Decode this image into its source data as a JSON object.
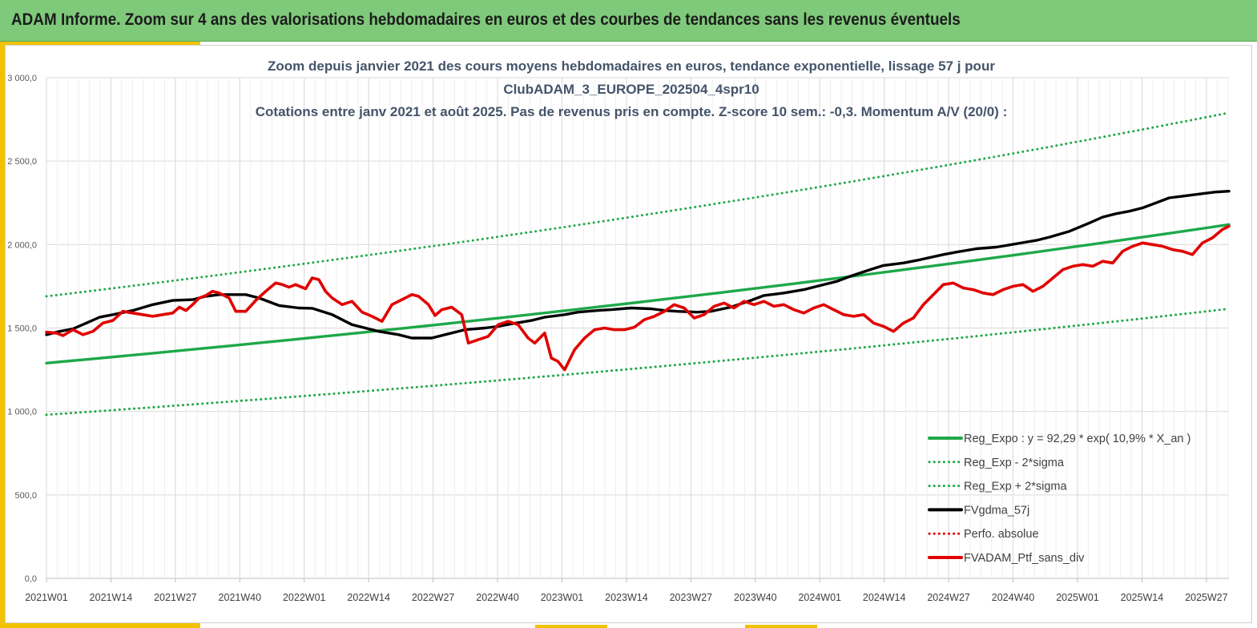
{
  "header": {
    "title": "ADAM Informe. Zoom sur 4 ans des valorisations hebdomadaires en euros et des courbes de tendances sans les revenus éventuels"
  },
  "colors": {
    "banner": "#7fc97a",
    "accent_yellow": "#f2c200",
    "reg_expo": "#1fa84a",
    "sigma": "#1fa84a",
    "gdma": "#000000",
    "perfo": "#e00000",
    "ptf": "#e00000"
  },
  "chart_data": {
    "type": "line",
    "title_lines": [
      "Zoom depuis janvier 2021 des cours moyens hebdomadaires  en euros, tendance exponentielle, lissage 57 j pour",
      "ClubADAM_3_EUROPE_202504_4spr10",
      "Cotations  entre janv 2021 et août 2025. Pas de revenus pris en compte.  Z-score 10 sem.: -0,3. Momentum A/V (20/0) :"
    ],
    "ylim": [
      0,
      3000
    ],
    "y_ticks": [
      "0,0",
      "500,0",
      "1 000,0",
      "1 500,0",
      "2 000,0",
      "2 500,0",
      "3 000,0"
    ],
    "x_ticks": [
      "2021W01",
      "2021W14",
      "2021W27",
      "2021W40",
      "2022W01",
      "2022W14",
      "2022W27",
      "2022W40",
      "2023W01",
      "2023W14",
      "2023W27",
      "2023W40",
      "2024W01",
      "2024W14",
      "2024W27",
      "2024W40",
      "2025W01",
      "2025W14",
      "2025W27"
    ],
    "x_range_weeks": [
      0,
      238
    ],
    "grid": "vertical-and-horizontal",
    "legend_position": "bottom-right",
    "series": [
      {
        "name": "Reg_Expo : y = 92,29 * exp( 10,9% *  X_an )",
        "style": "solid",
        "color": "#1fa84a",
        "start": 1290,
        "end": 2120
      },
      {
        "name": "Reg_Exp - 2*sigma",
        "style": "dotted",
        "color": "#1fa84a",
        "start": 980,
        "end": 1615
      },
      {
        "name": "Reg_Exp + 2*sigma",
        "style": "dotted",
        "color": "#1fa84a",
        "start": 1690,
        "end": 2790
      },
      {
        "name": "FVgdma_57j",
        "style": "solid",
        "color": "#000000",
        "points": [
          [
            0,
            1460
          ],
          [
            4,
            1480
          ],
          [
            8,
            1495
          ],
          [
            12,
            1530
          ],
          [
            16,
            1565
          ],
          [
            20,
            1580
          ],
          [
            26,
            1605
          ],
          [
            32,
            1640
          ],
          [
            38,
            1665
          ],
          [
            44,
            1670
          ],
          [
            48,
            1690
          ],
          [
            52,
            1700
          ],
          [
            60,
            1700
          ],
          [
            64,
            1680
          ],
          [
            70,
            1635
          ],
          [
            76,
            1620
          ],
          [
            80,
            1618
          ],
          [
            86,
            1580
          ],
          [
            92,
            1520
          ],
          [
            96,
            1500
          ],
          [
            100,
            1480
          ],
          [
            106,
            1460
          ],
          [
            110,
            1440
          ],
          [
            116,
            1440
          ],
          [
            120,
            1460
          ],
          [
            126,
            1490
          ],
          [
            132,
            1500
          ],
          [
            136,
            1510
          ],
          [
            140,
            1525
          ],
          [
            146,
            1545
          ],
          [
            150,
            1565
          ],
          [
            156,
            1580
          ],
          [
            160,
            1595
          ],
          [
            166,
            1605
          ],
          [
            170,
            1610
          ],
          [
            176,
            1620
          ],
          [
            182,
            1615
          ],
          [
            186,
            1605
          ],
          [
            190,
            1600
          ],
          [
            196,
            1595
          ],
          [
            200,
            1600
          ],
          [
            206,
            1625
          ],
          [
            212,
            1665
          ],
          [
            216,
            1695
          ],
          [
            222,
            1710
          ],
          [
            228,
            1730
          ],
          [
            232,
            1750
          ],
          [
            238,
            1780
          ],
          [
            242,
            1810
          ],
          [
            248,
            1850
          ],
          [
            252,
            1875
          ],
          [
            258,
            1890
          ],
          [
            262,
            1905
          ],
          [
            270,
            1940
          ],
          [
            274,
            1955
          ],
          [
            280,
            1975
          ],
          [
            286,
            1985
          ],
          [
            292,
            2005
          ],
          [
            298,
            2025
          ],
          [
            302,
            2045
          ],
          [
            308,
            2080
          ],
          [
            314,
            2130
          ],
          [
            318,
            2165
          ],
          [
            322,
            2185
          ],
          [
            326,
            2200
          ],
          [
            330,
            2220
          ],
          [
            334,
            2250
          ],
          [
            338,
            2280
          ],
          [
            342,
            2290
          ],
          [
            346,
            2300
          ],
          [
            352,
            2315
          ],
          [
            356,
            2320
          ]
        ]
      },
      {
        "name": "Perfo. absolue",
        "style": "dotted",
        "color": "#e00000",
        "points": []
      },
      {
        "name": "FVADAM_Ptf_sans_div",
        "style": "solid",
        "color": "#e00000",
        "points": [
          [
            0,
            1475
          ],
          [
            3,
            1470
          ],
          [
            5,
            1455
          ],
          [
            8,
            1490
          ],
          [
            11,
            1460
          ],
          [
            14,
            1480
          ],
          [
            17,
            1530
          ],
          [
            20,
            1545
          ],
          [
            23,
            1600
          ],
          [
            26,
            1590
          ],
          [
            29,
            1580
          ],
          [
            32,
            1570
          ],
          [
            35,
            1580
          ],
          [
            38,
            1590
          ],
          [
            40,
            1625
          ],
          [
            42,
            1605
          ],
          [
            44,
            1640
          ],
          [
            46,
            1680
          ],
          [
            48,
            1695
          ],
          [
            50,
            1720
          ],
          [
            52,
            1710
          ],
          [
            55,
            1680
          ],
          [
            57,
            1600
          ],
          [
            60,
            1600
          ],
          [
            63,
            1665
          ],
          [
            66,
            1720
          ],
          [
            69,
            1770
          ],
          [
            71,
            1760
          ],
          [
            73,
            1745
          ],
          [
            75,
            1760
          ],
          [
            78,
            1735
          ],
          [
            80,
            1800
          ],
          [
            82,
            1790
          ],
          [
            84,
            1720
          ],
          [
            86,
            1680
          ],
          [
            89,
            1640
          ],
          [
            92,
            1660
          ],
          [
            95,
            1595
          ],
          [
            98,
            1570
          ],
          [
            101,
            1540
          ],
          [
            104,
            1640
          ],
          [
            107,
            1670
          ],
          [
            110,
            1700
          ],
          [
            112,
            1690
          ],
          [
            115,
            1640
          ],
          [
            117,
            1575
          ],
          [
            119,
            1610
          ],
          [
            122,
            1625
          ],
          [
            125,
            1580
          ],
          [
            127,
            1410
          ],
          [
            130,
            1430
          ],
          [
            133,
            1450
          ],
          [
            136,
            1520
          ],
          [
            139,
            1540
          ],
          [
            142,
            1520
          ],
          [
            145,
            1440
          ],
          [
            147,
            1410
          ],
          [
            150,
            1470
          ],
          [
            152,
            1320
          ],
          [
            154,
            1300
          ],
          [
            156,
            1250
          ],
          [
            159,
            1370
          ],
          [
            162,
            1440
          ],
          [
            165,
            1490
          ],
          [
            168,
            1500
          ],
          [
            171,
            1490
          ],
          [
            174,
            1490
          ],
          [
            177,
            1505
          ],
          [
            180,
            1550
          ],
          [
            183,
            1570
          ],
          [
            186,
            1600
          ],
          [
            189,
            1640
          ],
          [
            192,
            1620
          ],
          [
            195,
            1560
          ],
          [
            198,
            1580
          ],
          [
            201,
            1630
          ],
          [
            204,
            1650
          ],
          [
            207,
            1620
          ],
          [
            210,
            1660
          ],
          [
            213,
            1640
          ],
          [
            216,
            1660
          ],
          [
            219,
            1630
          ],
          [
            222,
            1640
          ],
          [
            225,
            1610
          ],
          [
            228,
            1590
          ],
          [
            231,
            1620
          ],
          [
            234,
            1640
          ],
          [
            237,
            1610
          ],
          [
            240,
            1580
          ],
          [
            243,
            1570
          ],
          [
            246,
            1580
          ],
          [
            249,
            1530
          ],
          [
            252,
            1510
          ],
          [
            255,
            1480
          ],
          [
            258,
            1530
          ],
          [
            261,
            1560
          ],
          [
            264,
            1640
          ],
          [
            267,
            1700
          ],
          [
            270,
            1760
          ],
          [
            273,
            1770
          ],
          [
            276,
            1740
          ],
          [
            279,
            1730
          ],
          [
            282,
            1710
          ],
          [
            285,
            1700
          ],
          [
            288,
            1730
          ],
          [
            291,
            1750
          ],
          [
            294,
            1760
          ],
          [
            297,
            1720
          ],
          [
            300,
            1750
          ],
          [
            303,
            1800
          ],
          [
            306,
            1850
          ],
          [
            309,
            1870
          ],
          [
            312,
            1880
          ],
          [
            315,
            1870
          ],
          [
            318,
            1900
          ],
          [
            321,
            1890
          ],
          [
            324,
            1960
          ],
          [
            327,
            1990
          ],
          [
            330,
            2010
          ],
          [
            333,
            2000
          ],
          [
            336,
            1990
          ],
          [
            339,
            1970
          ],
          [
            342,
            1960
          ],
          [
            345,
            1940
          ],
          [
            348,
            2010
          ],
          [
            351,
            2040
          ],
          [
            354,
            2090
          ],
          [
            356,
            2110
          ]
        ]
      }
    ]
  }
}
